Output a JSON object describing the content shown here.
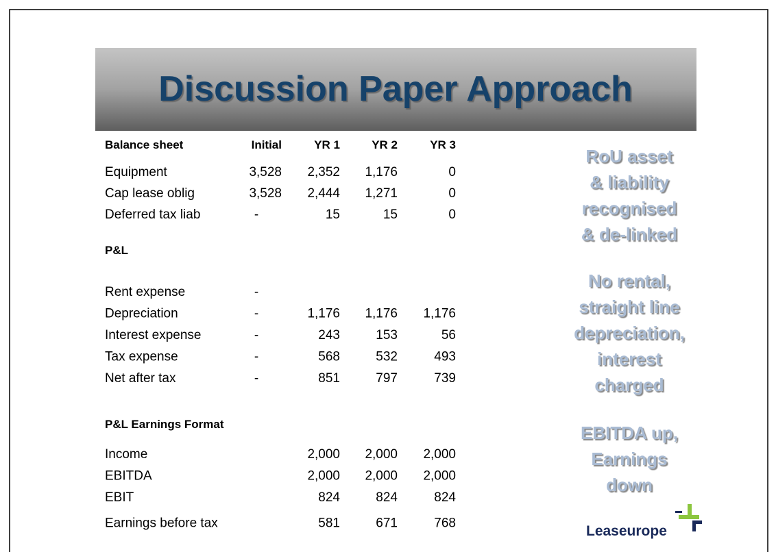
{
  "title": "Discussion Paper Approach",
  "table": {
    "columns": [
      "Balance sheet",
      "Initial",
      "YR 1",
      "YR 2",
      "YR 3"
    ],
    "sections": [
      {
        "rows": [
          [
            "Equipment",
            "3,528",
            "2,352",
            "1,176",
            "0"
          ],
          [
            "Cap lease oblig",
            "3,528",
            "2,444",
            "1,271",
            "0"
          ],
          [
            "Deferred tax liab",
            "-",
            "15",
            "15",
            "0"
          ]
        ]
      },
      {
        "heading": "P&L",
        "rows": [
          [
            "Rent expense",
            "-",
            null,
            null,
            null
          ],
          [
            "Depreciation",
            "-",
            "1,176",
            "1,176",
            "1,176"
          ],
          [
            "Interest expense",
            "-",
            "243",
            "153",
            "56"
          ],
          [
            "Tax expense",
            "-",
            "568",
            "532",
            "493"
          ],
          [
            "Net after tax",
            "-",
            "851",
            "797",
            "739"
          ]
        ]
      },
      {
        "heading": "P&L Earnings Format",
        "rows": [
          [
            "Income",
            null,
            "2,000",
            "2,000",
            "2,000"
          ],
          [
            "EBITDA",
            null,
            "2,000",
            "2,000",
            "2,000"
          ],
          [
            "EBIT",
            null,
            "824",
            "824",
            "824"
          ],
          [
            "Earnings before tax",
            null,
            "581",
            "671",
            "768"
          ]
        ]
      }
    ]
  },
  "notes": [
    [
      "RoU asset",
      "& liability",
      "recognised",
      "& de-linked"
    ],
    [
      "No rental,",
      "straight line",
      "depreciation,",
      "interest",
      "charged"
    ],
    [
      "EBITDA up,",
      "Earnings",
      "down"
    ]
  ],
  "logo": "Leaseurope"
}
